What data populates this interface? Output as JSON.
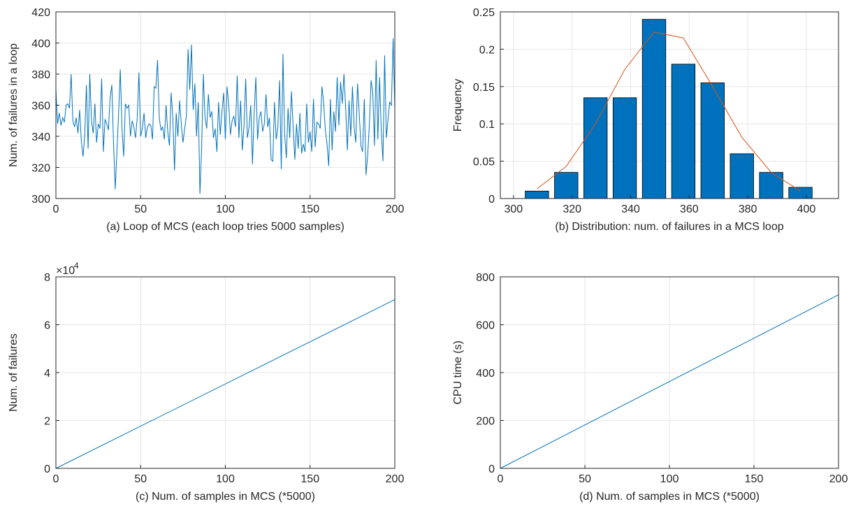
{
  "chart_data": [
    {
      "type": "line",
      "xlabel": "(a) Loop of MCS (each loop tries 5000 samples)",
      "ylabel": "Num. of failures in a loop",
      "xlim": [
        0,
        200
      ],
      "xticks": [
        0,
        50,
        100,
        150,
        200
      ],
      "ylim": [
        300,
        420
      ],
      "yticks": [
        300,
        320,
        340,
        360,
        380,
        400,
        420
      ],
      "grid": true,
      "series": [
        {
          "color": "#0072bd",
          "values": [
            370,
            348,
            355,
            347,
            352,
            349,
            360,
            361,
            358,
            380,
            350,
            346,
            352,
            342,
            357,
            337,
            327,
            340,
            373,
            332,
            380,
            350,
            342,
            361,
            336,
            348,
            345,
            377,
            330,
            351,
            348,
            344,
            365,
            373,
            336,
            306,
            330,
            355,
            383,
            345,
            327,
            361,
            358,
            360,
            340,
            350,
            346,
            339,
            352,
            381,
            340,
            345,
            355,
            339,
            346,
            348,
            347,
            338,
            372,
            371,
            389,
            352,
            344,
            346,
            338,
            360,
            343,
            334,
            368,
            352,
            318,
            355,
            340,
            363,
            348,
            336,
            345,
            353,
            396,
            370,
            399,
            357,
            374,
            340,
            362,
            303,
            332,
            380,
            352,
            345,
            367,
            352,
            356,
            339,
            345,
            330,
            362,
            341,
            356,
            368,
            338,
            372,
            360,
            341,
            350,
            353,
            346,
            379,
            339,
            363,
            331,
            347,
            377,
            339,
            346,
            360,
            322,
            355,
            378,
            338,
            352,
            356,
            343,
            348,
            367,
            346,
            352,
            325,
            324,
            362,
            338,
            346,
            376,
            319,
            393,
            341,
            326,
            358,
            339,
            369,
            346,
            325,
            348,
            332,
            355,
            329,
            335,
            330,
            361,
            336,
            343,
            330,
            364,
            333,
            349,
            348,
            345,
            372,
            362,
            344,
            335,
            321,
            364,
            331,
            356,
            343,
            378,
            347,
            375,
            361,
            380,
            358,
            331,
            363,
            340,
            372,
            346,
            336,
            374,
            355,
            334,
            330,
            364,
            315,
            328,
            348,
            376,
            368,
            334,
            389,
            338,
            378,
            344,
            324,
            392,
            339,
            351,
            362,
            360,
            403,
            358
          ]
        }
      ]
    },
    {
      "type": "histogram",
      "xlabel": "(b) Distribution: num. of failures in a MCS loop",
      "ylabel": "Frequency",
      "xlim": [
        295.5,
        411
      ],
      "xticks": [
        300,
        320,
        340,
        360,
        380,
        400
      ],
      "ylim": [
        0,
        0.25
      ],
      "yticks": [
        0,
        0.05,
        0.1,
        0.15,
        0.2,
        0.25
      ],
      "grid": true,
      "bins": [
        303,
        313,
        323,
        333,
        343,
        353,
        363,
        373,
        383,
        393,
        403
      ],
      "values": [
        0.01,
        0.035,
        0.135,
        0.135,
        0.24,
        0.18,
        0.155,
        0.06,
        0.035,
        0.015
      ],
      "color": "#0072bd",
      "series": [
        {
          "color": "#d95319",
          "x": [
            308,
            318,
            328,
            338,
            348,
            358,
            368,
            378,
            388,
            398
          ],
          "values": [
            0.013,
            0.043,
            0.1,
            0.173,
            0.223,
            0.215,
            0.15,
            0.082,
            0.035,
            0.01
          ]
        }
      ]
    },
    {
      "type": "line",
      "xlabel": "(c) Num. of samples in MCS (*5000)",
      "ylabel": "Num. of failures",
      "xlim": [
        0,
        200
      ],
      "xticks": [
        0,
        50,
        100,
        150,
        200
      ],
      "ylim": [
        0,
        80000
      ],
      "yticks": [
        {
          "value": 0,
          "label": "0"
        },
        {
          "value": 20000,
          "label": "2"
        },
        {
          "value": 40000,
          "label": "4"
        },
        {
          "value": 60000,
          "label": "6"
        },
        {
          "value": 80000,
          "label": "8"
        }
      ],
      "y_scale_label": "×10",
      "y_scale_exponent": "4",
      "grid": true,
      "series": [
        {
          "color": "#0072bd",
          "x": [
            0,
            200
          ],
          "values": [
            0,
            70500
          ]
        }
      ]
    },
    {
      "type": "line",
      "xlabel": "(d) Num. of samples in MCS (*5000)",
      "ylabel": "CPU time (s)",
      "xlim": [
        0,
        200
      ],
      "xticks": [
        0,
        50,
        100,
        150,
        200
      ],
      "ylim": [
        0,
        800
      ],
      "yticks": [
        0,
        200,
        400,
        600,
        800
      ],
      "grid": true,
      "series": [
        {
          "color": "#0072bd",
          "x": [
            0,
            200
          ],
          "values": [
            0,
            725
          ]
        }
      ]
    }
  ]
}
